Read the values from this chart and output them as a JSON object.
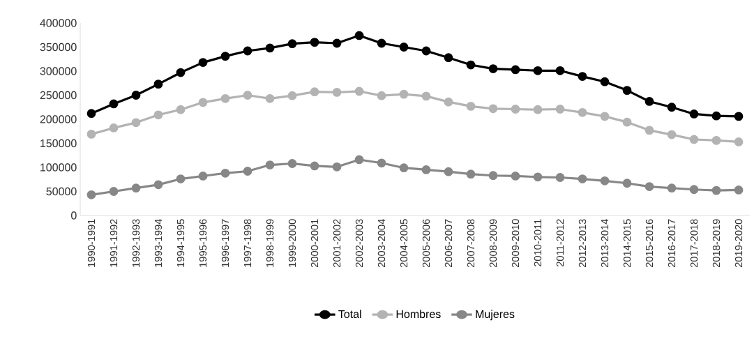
{
  "chart_data": {
    "type": "line",
    "categories": [
      "1990-1991",
      "1991-1992",
      "1992-1993",
      "1993-1994",
      "1994-1995",
      "1995-1996",
      "1996-1997",
      "1997-1998",
      "1998-1999",
      "1999-2000",
      "2000-2001",
      "2001-2002",
      "2002-2003",
      "2003-2004",
      "2004-2005",
      "2005-2006",
      "2006-2007",
      "2007-2008",
      "2008-2009",
      "2009-2010",
      "2010-2011",
      "2011-2012",
      "2012-2013",
      "2013-2014",
      "2014-2015",
      "2015-2016",
      "2016-2017",
      "2017-2018",
      "2018-2019",
      "2019-2020"
    ],
    "series": [
      {
        "name": "Total",
        "color": "#000000",
        "values": [
          212000,
          232000,
          250000,
          273000,
          297000,
          318000,
          331000,
          342000,
          348000,
          357000,
          360000,
          358000,
          374000,
          358000,
          350000,
          342000,
          328000,
          313000,
          305000,
          303000,
          301000,
          301000,
          289000,
          278000,
          260000,
          237000,
          225000,
          211000,
          207000,
          206000
        ]
      },
      {
        "name": "Hombres",
        "color": "#b3b3b3",
        "values": [
          169000,
          182000,
          193000,
          209000,
          220000,
          235000,
          243000,
          250000,
          243000,
          249000,
          257000,
          256000,
          258000,
          249000,
          252000,
          248000,
          236000,
          227000,
          222000,
          221000,
          220000,
          221000,
          214000,
          206000,
          194000,
          177000,
          168000,
          158000,
          156000,
          153000
        ]
      },
      {
        "name": "Mujeres",
        "color": "#878787",
        "values": [
          43000,
          50000,
          57000,
          64000,
          76000,
          82000,
          88000,
          92000,
          105000,
          108000,
          103000,
          101000,
          116000,
          109000,
          99000,
          95000,
          91000,
          86000,
          83000,
          82000,
          80000,
          79000,
          76000,
          72000,
          67000,
          60000,
          57000,
          54000,
          52000,
          53000
        ]
      }
    ],
    "ylim": [
      0,
      400000
    ],
    "yticks": [
      0,
      50000,
      100000,
      150000,
      200000,
      250000,
      300000,
      350000,
      400000
    ],
    "grid": false,
    "legend": "bottom",
    "marker": "circle",
    "line_style": "solid"
  }
}
